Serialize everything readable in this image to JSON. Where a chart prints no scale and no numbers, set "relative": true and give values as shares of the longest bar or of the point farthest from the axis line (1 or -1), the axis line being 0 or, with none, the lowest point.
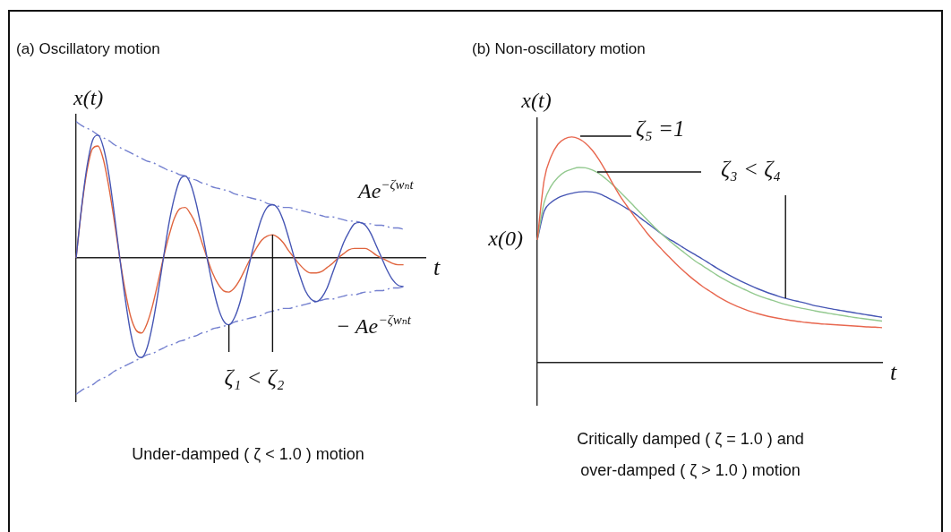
{
  "chart_data": [
    {
      "type": "line",
      "title": "(a) Oscillatory motion",
      "xlabel": "t",
      "ylabel": "x(t)",
      "relative": true,
      "categories": [
        null,
        null,
        null,
        null,
        null,
        null,
        null,
        null,
        null,
        null,
        null,
        null,
        null,
        null,
        null,
        null,
        null,
        null,
        null,
        null,
        null,
        null,
        null,
        null,
        null,
        null,
        null,
        null,
        null,
        null,
        null,
        null,
        null,
        null,
        null,
        null,
        null,
        null,
        null,
        null,
        null,
        null,
        null,
        null,
        null,
        null,
        null,
        null,
        null,
        null,
        null,
        null,
        null,
        null,
        null,
        null,
        null,
        null,
        null,
        null,
        null,
        null,
        null,
        null,
        null
      ],
      "series": [
        {
          "color": "#4656b4",
          "values": [
            0,
            0.37,
            0.67,
            0.86,
            0.9,
            0.81,
            0.61,
            0.32,
            0,
            -0.3,
            -0.55,
            -0.7,
            -0.73,
            -0.66,
            -0.49,
            -0.26,
            0,
            0.25,
            0.44,
            0.57,
            0.6,
            0.54,
            0.4,
            0.21,
            0,
            -0.2,
            -0.36,
            -0.46,
            -0.49,
            -0.44,
            -0.33,
            -0.17,
            0,
            0.16,
            0.29,
            0.37,
            0.39,
            0.36,
            0.27,
            0.14,
            0,
            -0.13,
            -0.24,
            -0.3,
            -0.32,
            -0.29,
            -0.22,
            -0.11,
            0,
            0.11,
            0.19,
            0.25,
            0.26,
            0.24,
            0.18,
            0.09,
            0,
            -0.09,
            -0.16,
            -0.2,
            -0.21,
            null,
            null,
            null,
            null
          ]
        },
        {
          "color": "#e0653f",
          "values": [
            0,
            0.36,
            0.64,
            0.8,
            0.82,
            0.72,
            0.52,
            0.27,
            0,
            -0.24,
            -0.43,
            -0.53,
            -0.55,
            -0.48,
            -0.35,
            -0.18,
            0,
            0.16,
            0.29,
            0.36,
            0.37,
            0.32,
            0.24,
            0.12,
            0,
            -0.11,
            -0.19,
            -0.24,
            -0.25,
            -0.22,
            -0.16,
            -0.08,
            0,
            0.07,
            0.13,
            0.16,
            0.17,
            0.15,
            0.11,
            0.05,
            0,
            -0.05,
            -0.09,
            -0.11,
            -0.11,
            -0.1,
            -0.07,
            -0.04,
            0,
            0.03,
            0.06,
            0.07,
            0.07,
            0.07,
            0.05,
            0.02,
            0,
            -0.02,
            -0.04,
            -0.05,
            -0.05,
            null,
            null,
            null,
            null
          ]
        },
        {
          "name": "Ae$^{−ζwₙt}$",
          "color": "#7480cf",
          "line_style": "dashed",
          "values": [
            1,
            0.97,
            0.95,
            0.93,
            0.9,
            0.88,
            0.86,
            0.83,
            0.81,
            0.79,
            0.77,
            0.75,
            0.73,
            0.71,
            0.7,
            0.68,
            0.66,
            0.64,
            0.63,
            0.61,
            0.6,
            0.58,
            0.57,
            0.55,
            0.54,
            0.52,
            0.51,
            0.5,
            0.49,
            0.47,
            0.46,
            0.45,
            0.44,
            0.43,
            0.42,
            0.4,
            0.39,
            0.38,
            0.37,
            0.37,
            0.36,
            0.35,
            0.34,
            0.33,
            0.32,
            0.31,
            0.3,
            0.3,
            0.29,
            0.28,
            0.27,
            0.27,
            0.26,
            0.25,
            0.25,
            0.24,
            0.24,
            0.23,
            0.22,
            0.22,
            0.21,
            null,
            null,
            null,
            null
          ]
        },
        {
          "name": "− Ae$^{−ζwₙt}$",
          "color": "#7480cf",
          "line_style": "dashed",
          "values": [
            -1,
            -0.97,
            -0.95,
            -0.93,
            -0.9,
            -0.88,
            -0.86,
            -0.83,
            -0.81,
            -0.79,
            -0.77,
            -0.75,
            -0.73,
            -0.71,
            -0.7,
            -0.68,
            -0.66,
            -0.64,
            -0.63,
            -0.61,
            -0.6,
            -0.58,
            -0.57,
            -0.55,
            -0.54,
            -0.52,
            -0.51,
            -0.5,
            -0.49,
            -0.47,
            -0.46,
            -0.45,
            -0.44,
            -0.43,
            -0.42,
            -0.4,
            -0.39,
            -0.38,
            -0.37,
            -0.37,
            -0.36,
            -0.35,
            -0.34,
            -0.33,
            -0.32,
            -0.31,
            -0.3,
            -0.3,
            -0.29,
            -0.28,
            -0.27,
            -0.27,
            -0.26,
            -0.25,
            -0.25,
            -0.24,
            -0.24,
            -0.23,
            -0.22,
            -0.22,
            -0.21,
            null,
            null,
            null,
            null
          ]
        }
      ],
      "annotations": [
        "ζ₁ < ζ₂",
        "Under-damped ( ζ < 1.0 ) motion"
      ]
    },
    {
      "type": "line",
      "title": "(b) Non-oscillatory motion",
      "xlabel": "t",
      "ylabel": "x(t)",
      "relative": true,
      "categories": [
        null,
        null,
        null,
        null,
        null,
        null,
        null,
        null,
        null,
        null,
        null,
        null,
        null,
        null,
        null,
        null,
        null,
        null,
        null,
        null,
        null,
        null,
        null,
        null,
        null,
        null,
        null,
        null,
        null,
        null,
        null,
        null,
        null,
        null,
        null,
        null,
        null,
        null,
        null,
        null,
        null,
        null,
        null,
        null,
        null,
        null,
        null,
        null,
        null,
        null,
        null
      ],
      "series": [
        {
          "color": "#e8674f",
          "values": [
            0.544,
            0.81,
            0.913,
            0.968,
            0.992,
            1,
            0.992,
            0.972,
            0.94,
            0.897,
            0.845,
            0.79,
            0.738,
            0.694,
            0.651,
            0.611,
            0.571,
            0.536,
            0.504,
            0.472,
            0.441,
            0.412,
            0.385,
            0.36,
            0.337,
            0.317,
            0.297,
            0.279,
            0.263,
            0.249,
            0.237,
            0.226,
            0.217,
            0.209,
            0.202,
            0.196,
            0.191,
            0.186,
            0.182,
            0.178,
            0.175,
            0.172,
            0.17,
            0.168,
            0.166,
            0.164,
            0.162,
            0.16,
            0.158,
            0.157,
            0.155
          ]
        },
        {
          "color": "#93c98f",
          "values": [
            0.544,
            0.71,
            0.782,
            0.821,
            0.845,
            0.857,
            0.865,
            0.863,
            0.853,
            0.837,
            0.813,
            0.786,
            0.757,
            0.726,
            0.694,
            0.662,
            0.631,
            0.6,
            0.571,
            0.544,
            0.519,
            0.495,
            0.471,
            0.448,
            0.429,
            0.409,
            0.389,
            0.371,
            0.354,
            0.339,
            0.325,
            0.311,
            0.298,
            0.287,
            0.277,
            0.267,
            0.258,
            0.25,
            0.243,
            0.237,
            0.231,
            0.225,
            0.22,
            0.215,
            0.21,
            0.205,
            0.2,
            0.196,
            0.192,
            0.188,
            0.184
          ]
        },
        {
          "color": "#4656b4",
          "values": [
            0.544,
            0.671,
            0.71,
            0.73,
            0.742,
            0.75,
            0.756,
            0.758,
            0.756,
            0.748,
            0.734,
            0.718,
            0.701,
            0.683,
            0.664,
            0.64,
            0.617,
            0.594,
            0.571,
            0.55,
            0.532,
            0.513,
            0.494,
            0.476,
            0.458,
            0.439,
            0.42,
            0.402,
            0.385,
            0.369,
            0.354,
            0.34,
            0.327,
            0.315,
            0.304,
            0.294,
            0.285,
            0.277,
            0.27,
            0.263,
            0.254,
            0.248,
            0.242,
            0.236,
            0.231,
            0.226,
            0.221,
            0.216,
            0.211,
            0.206,
            0.201
          ]
        }
      ],
      "annotations": [
        "x(0)",
        "ζ₅ =1",
        "ζ₃ < ζ₄",
        "Critically damped ( ζ = 1.0 ) and over-damped ( ζ > 1.0 ) motion"
      ]
    }
  ]
}
